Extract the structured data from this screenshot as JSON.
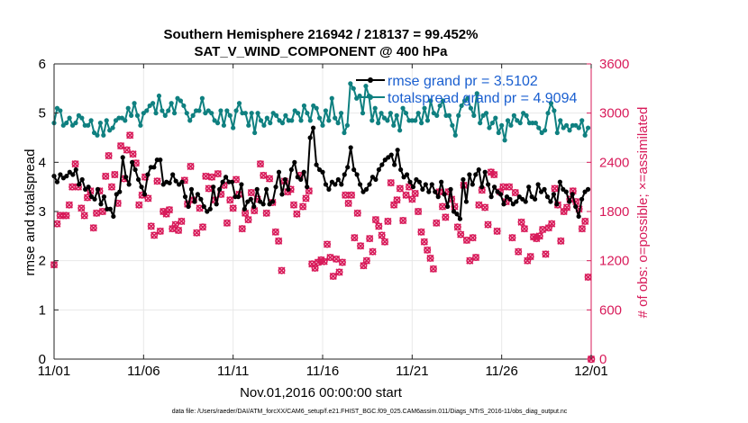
{
  "chart_data": {
    "type": "line",
    "title_line1": "Southern Hemisphere 216942 / 218137 = 99.452%",
    "title_line2": "SAT_V_WIND_COMPONENT @ 400 hPa",
    "xlabel": "Nov.01,2016 00:00:00 start",
    "ylabel_left": "rmse and totalspread",
    "ylabel_right": "# of obs: o=possible; ×=assimilated",
    "footnote": "data file: /Users/raeder/DAI/ATM_forcXX/CAM6_setup/f.e21.FHIST_BGC.f09_025.CAM6assim.011/Diags_NTrS_2016-11/obs_diag_output.nc",
    "x_ticks": [
      "11/01",
      "11/06",
      "11/11",
      "11/16",
      "11/21",
      "11/26",
      "12/01"
    ],
    "y_left_ticks": [
      "0",
      "1",
      "2",
      "3",
      "4",
      "5",
      "6"
    ],
    "y_right_ticks": [
      "0",
      "600",
      "1200",
      "1800",
      "2400",
      "3000",
      "3600"
    ],
    "xlim": [
      0,
      30
    ],
    "ylim_left": [
      0,
      6
    ],
    "ylim_right": [
      0,
      3600
    ],
    "grid": true,
    "legend_position": "top-right",
    "colors": {
      "rmse": "#000000",
      "spread": "#0f8080",
      "obs": "#d81b5a",
      "legend_text": "#1a5fd0",
      "right_axis": "#d81b5a"
    },
    "series": [
      {
        "name": "rmse grand pr = 3.5102",
        "values": [
          3.72,
          3.6,
          3.75,
          3.68,
          3.72,
          3.8,
          3.75,
          3.85,
          3.55,
          3.65,
          3.45,
          3.5,
          3.3,
          3.25,
          3.45,
          3.15,
          3.3,
          3.05,
          3.05,
          2.9,
          3.35,
          3.4,
          4.1,
          3.7,
          3.55,
          4,
          3.85,
          3.65,
          3.5,
          3.35,
          3.75,
          3.9,
          3.9,
          4.05,
          4.05,
          3.55,
          3.6,
          3.58,
          3.75,
          3.62,
          3.55,
          3.6,
          3.3,
          3.1,
          3.45,
          3.2,
          3.35,
          3.25,
          3.1,
          3.0,
          3.05,
          3.5,
          3.15,
          3.45,
          3.6,
          3.7,
          3.6,
          3.6,
          3.3,
          3.3,
          3.55,
          3.05,
          3.2,
          3.25,
          3.1,
          3.45,
          3.2,
          3.15,
          3.45,
          3.15,
          3.2,
          3.5,
          3.8,
          3.35,
          3.65,
          3.45,
          3.85,
          4.0,
          3.7,
          3.65,
          3.8,
          3.5,
          4.5,
          4.7,
          3.95,
          3.85,
          3.8,
          3.55,
          3.45,
          3.6,
          3.55,
          3.65,
          3.55,
          3.75,
          3.9,
          4.3,
          3.85,
          3.75,
          3.55,
          3.4,
          3.45,
          3.55,
          3.7,
          3.65,
          3.85,
          3.95,
          4.05,
          4.1,
          4.15,
          3.95,
          4.25,
          3.85,
          3.7,
          3.75,
          3.6,
          3.5,
          3.65,
          3.6,
          3.45,
          3.55,
          3.4,
          3.55,
          3.4,
          3.3,
          3.6,
          3.35,
          3.1,
          3.45,
          3.0,
          2.95,
          2.85,
          3.65,
          3.2,
          3.75,
          3.55,
          3.75,
          3.85,
          3.5,
          3.8,
          3.55,
          3.3,
          3.5,
          3.4,
          3.35,
          3.15,
          3.3,
          3.25,
          3.15,
          3.2,
          3.3,
          3.25,
          3.2,
          3.5,
          3.3,
          3.25,
          3.55,
          3.4,
          3.45,
          3.3,
          3.2,
          3.35,
          3.15,
          3.6,
          3.45,
          3.4,
          3.2,
          3.35,
          3.1,
          2.9,
          3.25,
          3.4,
          3.45
        ]
      },
      {
        "name": "totalspread grand pr = 4.9094",
        "values": [
          4.8,
          5.1,
          5.05,
          4.75,
          4.8,
          4.9,
          4.75,
          4.8,
          4.95,
          4.9,
          4.75,
          4.75,
          4.85,
          4.6,
          4.55,
          4.8,
          4.55,
          4.85,
          4.65,
          4.7,
          4.85,
          4.9,
          4.9,
          4.85,
          5.1,
          4.95,
          5.2,
          4.95,
          4.75,
          5.0,
          5.05,
          5.15,
          5.2,
          5.0,
          5.35,
          5.05,
          4.95,
          5.05,
          5.2,
          5.0,
          5.3,
          5.25,
          5.15,
          5.0,
          4.85,
          4.95,
          5.05,
          5.05,
          5.3,
          5.0,
          5.05,
          5.0,
          4.85,
          4.8,
          5.05,
          4.75,
          5.05,
          4.95,
          4.7,
          5.05,
          5.2,
          5.0,
          5.0,
          4.75,
          5.0,
          4.6,
          5.0,
          4.85,
          4.75,
          4.9,
          4.8,
          5.0,
          4.95,
          4.85,
          4.8,
          4.95,
          4.85,
          4.85,
          5.05,
          5.0,
          4.85,
          5.15,
          5.0,
          4.85,
          5.15,
          5.1,
          4.9,
          4.75,
          5.05,
          4.85,
          5.3,
          4.9,
          4.8,
          5.0,
          4.6,
          4.75,
          5.6,
          5.5,
          5.3,
          5.35,
          5.0,
          5.55,
          5.35,
          4.85,
          5.1,
          4.8,
          5.0,
          4.9,
          4.85,
          5.0,
          4.75,
          4.95,
          4.65,
          5.1,
          5.0,
          4.85,
          4.85,
          4.85,
          5.0,
          4.8,
          5.1,
          4.85,
          5.25,
          5.0,
          4.95,
          5.15,
          5.25,
          4.95,
          4.95,
          4.75,
          4.55,
          4.95,
          5.15,
          5.25,
          5.3,
          5.1,
          4.95,
          5.4,
          4.8,
          4.95,
          5.0,
          4.7,
          4.8,
          4.9,
          4.6,
          4.75,
          4.45,
          4.85,
          4.75,
          4.95,
          4.85,
          4.8,
          5.0,
          4.95,
          4.8,
          4.8,
          4.8,
          4.7,
          4.6,
          4.65,
          5.0,
          5.2,
          5.05,
          4.6,
          4.85,
          4.7,
          4.75,
          4.65,
          4.75,
          4.75,
          4.7,
          4.85,
          4.55,
          4.7
        ]
      },
      {
        "name": "obs_possible",
        "values": [
          1150,
          1650,
          1750,
          1750,
          1750,
          1880,
          2100,
          2380,
          2100,
          1840,
          1750,
          1970,
          2050,
          1600,
          1780,
          2050,
          1800,
          2230,
          2480,
          2100,
          2250,
          1900,
          2600,
          2200,
          2550,
          2730,
          2500,
          2390,
          1880,
          2000,
          2220,
          1960,
          1620,
          1510,
          2170,
          1560,
          1800,
          1770,
          1820,
          1590,
          1640,
          1570,
          1680,
          2180,
          1890,
          2350,
          1940,
          1540,
          1840,
          1610,
          2230,
          2080,
          2220,
          1940,
          2260,
          2010,
          2120,
          1660,
          1940,
          1840,
          2190,
          2010,
          1590,
          1780,
          1700,
          2030,
          1810,
          1950,
          2380,
          2240,
          1780,
          2200,
          1910,
          1550,
          1440,
          1080,
          2170,
          2040,
          2070,
          1880,
          1770,
          2240,
          1860,
          1960,
          2050,
          1160,
          1110,
          1180,
          1210,
          1190,
          1400,
          1240,
          1010,
          1220,
          1060,
          1180,
          2000,
          1900,
          2000,
          1480,
          1780,
          1380,
          1140,
          1200,
          1470,
          1310,
          1700,
          1620,
          1510,
          1430,
          1680,
          2150,
          1880,
          1940,
          2080,
          1690,
          2000,
          2100,
          1950,
          2020,
          1800,
          1550,
          1430,
          1330,
          1230,
          1100,
          1660,
          2040,
          1860,
          1730,
          2040,
          1950,
          1860,
          1610,
          1520,
          2120,
          1450,
          1200,
          1480,
          1240,
          1880,
          2060,
          1850,
          1640,
          2280,
          2250,
          1560,
          2040,
          2100,
          1920,
          2100,
          1480,
          2030,
          1310,
          1670,
          1590,
          1200,
          1250,
          1490,
          1470,
          1500,
          1580,
          1280,
          1600,
          1650,
          2080,
          1880,
          1440,
          1800,
          1850,
          1950,
          2050,
          1920,
          1830,
          1590,
          1680,
          1000
        ]
      }
    ],
    "annotations": [
      {
        "text": "rmse grand pr = 3.5102"
      },
      {
        "text": "totalspread grand pr = 4.9094"
      }
    ],
    "final_point": {
      "x": 30,
      "obs": 0
    }
  }
}
